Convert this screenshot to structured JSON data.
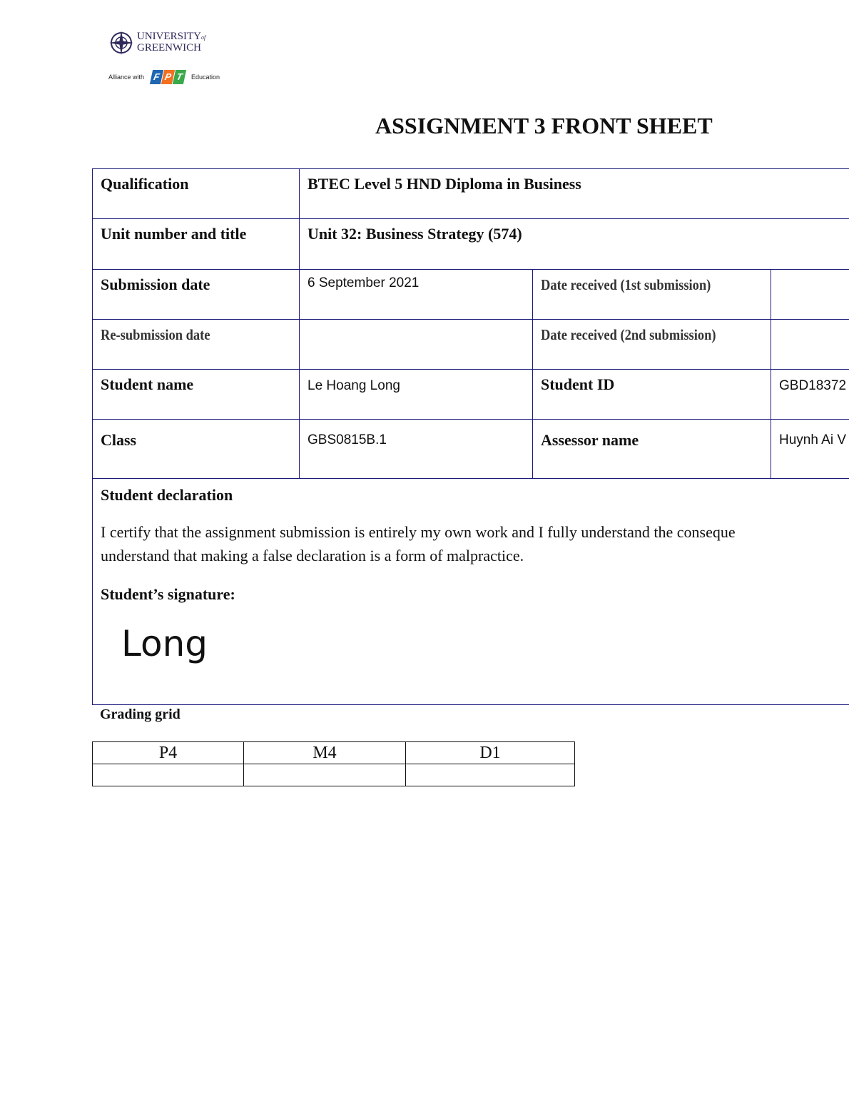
{
  "logo": {
    "university": "UNIVERSITY",
    "of": "of",
    "greenwich": "GREENWICH",
    "alliance": "Alliance with",
    "fpt": [
      "F",
      "P",
      "T"
    ],
    "education": "Education",
    "colors": {
      "F": "#1f67b1",
      "P": "#f37021",
      "T": "#3aa94a"
    }
  },
  "title": "ASSIGNMENT 3 FRONT SHEET",
  "rows": {
    "qualification_label": "Qualification",
    "qualification_value": "BTEC Level 5 HND Diploma in Business",
    "unit_label": "Unit number and title",
    "unit_value": "Unit 32: Business Strategy (574)",
    "submission_label": "Submission date",
    "submission_value": "6 September 2021",
    "received1_label": "Date received (1st submission)",
    "received1_value": "",
    "resubmission_label": "Re-submission date",
    "resubmission_value": "",
    "received2_label": "Date received (2nd submission)",
    "received2_value": "",
    "student_name_label": "Student name",
    "student_name_value": "Le Hoang Long",
    "student_id_label": "Student ID",
    "student_id_value": "GBD18372",
    "class_label": "Class",
    "class_value": "GBS0815B.1",
    "assessor_label": "Assessor name",
    "assessor_value": "Huynh Ai V"
  },
  "declaration": {
    "heading": "Student declaration",
    "line1": "I certify that the assignment submission  is entirely  my  own  work  and I fully understand the conseque",
    "line2": "understand that making a false declaration is a form of malpractice.",
    "signature_label": "Student’s signature:",
    "signature": "Long"
  },
  "grading": {
    "heading": "Grading grid",
    "headers": [
      "P4",
      "M4",
      "D1"
    ],
    "values": [
      "",
      "",
      ""
    ]
  }
}
